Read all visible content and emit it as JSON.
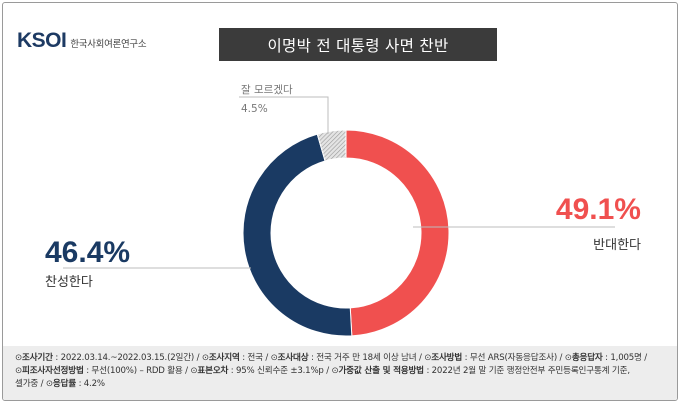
{
  "brand": {
    "logo_mark": "KSOI",
    "org_name": "한국사회여론연구소"
  },
  "title": "이명박 전 대통령 사면 찬반",
  "chart_data": {
    "type": "pie",
    "title": "이명박 전 대통령 사면 찬반",
    "style": "donut",
    "slices": [
      {
        "label": "반대한다",
        "value": 49.1,
        "display": "49.1%",
        "color": "#f0504f"
      },
      {
        "label": "찬성한다",
        "value": 46.4,
        "display": "46.4%",
        "color": "#1a3a63"
      },
      {
        "label": "잘 모르겠다",
        "value": 4.5,
        "display": "4.5%",
        "color": "#c9c9c9",
        "pattern": "hatched"
      }
    ]
  },
  "labels": {
    "oppose_pct": "49.1%",
    "oppose_name": "반대한다",
    "support_pct": "46.4%",
    "support_name": "찬성한다",
    "dontknow_name": "잘 모르겠다",
    "dontknow_pct": "4.5%"
  },
  "footer": {
    "period_label": "조사기간",
    "period_value": " : 2022.03.14.~2022.03.15.(2일간)  / ",
    "region_label": "조사지역",
    "region_value": " : 전국 / ",
    "target_label": "조사대상",
    "target_value": " : 전국 거주 만 18세 이상 남녀 / ",
    "method_label": "조사방법",
    "method_value": " : 무선 ARS(자동응답조사) / ",
    "respondents_label": "총응답자",
    "respondents_value": " : 1,005명 /",
    "sampling_label": "피조사자선정방법",
    "sampling_value": " : 무선(100%) – RDD 활용 / ",
    "error_label": "표본오차",
    "error_value": " : 95% 신뢰수준 ±3.1%p / ",
    "weight_label": "가중값 산출 및 적용방법",
    "weight_value": " : 2022년 2월 말 기준 행정안전부 주민등록인구통계 기준,",
    "weight_value2": "셀가중 / ",
    "response_label": "응답률",
    "response_value": " : 4.2%"
  }
}
